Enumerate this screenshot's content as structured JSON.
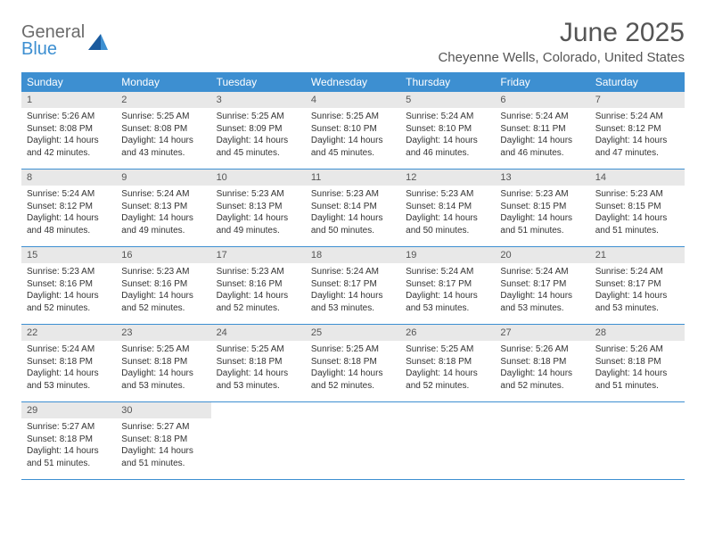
{
  "logo": {
    "general": "General",
    "blue": "Blue"
  },
  "title": "June 2025",
  "location": "Cheyenne Wells, Colorado, United States",
  "weekdays": [
    "Sunday",
    "Monday",
    "Tuesday",
    "Wednesday",
    "Thursday",
    "Friday",
    "Saturday"
  ],
  "colors": {
    "header_bar": "#3d8fd1",
    "daynum_bg": "#e8e8e8",
    "row_border": "#3d8fd1",
    "text": "#333333",
    "title_text": "#555555",
    "logo_gray": "#6b6b6b",
    "logo_blue": "#3d8fd1",
    "background": "#ffffff"
  },
  "typography": {
    "title_fontsize": 30,
    "location_fontsize": 15,
    "weekday_fontsize": 12,
    "daynum_fontsize": 11,
    "body_fontsize": 10
  },
  "grid": {
    "columns": 7,
    "rows": 5
  },
  "days": [
    {
      "n": "1",
      "sunrise": "5:26 AM",
      "sunset": "8:08 PM",
      "daylight": "14 hours and 42 minutes."
    },
    {
      "n": "2",
      "sunrise": "5:25 AM",
      "sunset": "8:08 PM",
      "daylight": "14 hours and 43 minutes."
    },
    {
      "n": "3",
      "sunrise": "5:25 AM",
      "sunset": "8:09 PM",
      "daylight": "14 hours and 45 minutes."
    },
    {
      "n": "4",
      "sunrise": "5:25 AM",
      "sunset": "8:10 PM",
      "daylight": "14 hours and 45 minutes."
    },
    {
      "n": "5",
      "sunrise": "5:24 AM",
      "sunset": "8:10 PM",
      "daylight": "14 hours and 46 minutes."
    },
    {
      "n": "6",
      "sunrise": "5:24 AM",
      "sunset": "8:11 PM",
      "daylight": "14 hours and 46 minutes."
    },
    {
      "n": "7",
      "sunrise": "5:24 AM",
      "sunset": "8:12 PM",
      "daylight": "14 hours and 47 minutes."
    },
    {
      "n": "8",
      "sunrise": "5:24 AM",
      "sunset": "8:12 PM",
      "daylight": "14 hours and 48 minutes."
    },
    {
      "n": "9",
      "sunrise": "5:24 AM",
      "sunset": "8:13 PM",
      "daylight": "14 hours and 49 minutes."
    },
    {
      "n": "10",
      "sunrise": "5:23 AM",
      "sunset": "8:13 PM",
      "daylight": "14 hours and 49 minutes."
    },
    {
      "n": "11",
      "sunrise": "5:23 AM",
      "sunset": "8:14 PM",
      "daylight": "14 hours and 50 minutes."
    },
    {
      "n": "12",
      "sunrise": "5:23 AM",
      "sunset": "8:14 PM",
      "daylight": "14 hours and 50 minutes."
    },
    {
      "n": "13",
      "sunrise": "5:23 AM",
      "sunset": "8:15 PM",
      "daylight": "14 hours and 51 minutes."
    },
    {
      "n": "14",
      "sunrise": "5:23 AM",
      "sunset": "8:15 PM",
      "daylight": "14 hours and 51 minutes."
    },
    {
      "n": "15",
      "sunrise": "5:23 AM",
      "sunset": "8:16 PM",
      "daylight": "14 hours and 52 minutes."
    },
    {
      "n": "16",
      "sunrise": "5:23 AM",
      "sunset": "8:16 PM",
      "daylight": "14 hours and 52 minutes."
    },
    {
      "n": "17",
      "sunrise": "5:23 AM",
      "sunset": "8:16 PM",
      "daylight": "14 hours and 52 minutes."
    },
    {
      "n": "18",
      "sunrise": "5:24 AM",
      "sunset": "8:17 PM",
      "daylight": "14 hours and 53 minutes."
    },
    {
      "n": "19",
      "sunrise": "5:24 AM",
      "sunset": "8:17 PM",
      "daylight": "14 hours and 53 minutes."
    },
    {
      "n": "20",
      "sunrise": "5:24 AM",
      "sunset": "8:17 PM",
      "daylight": "14 hours and 53 minutes."
    },
    {
      "n": "21",
      "sunrise": "5:24 AM",
      "sunset": "8:17 PM",
      "daylight": "14 hours and 53 minutes."
    },
    {
      "n": "22",
      "sunrise": "5:24 AM",
      "sunset": "8:18 PM",
      "daylight": "14 hours and 53 minutes."
    },
    {
      "n": "23",
      "sunrise": "5:25 AM",
      "sunset": "8:18 PM",
      "daylight": "14 hours and 53 minutes."
    },
    {
      "n": "24",
      "sunrise": "5:25 AM",
      "sunset": "8:18 PM",
      "daylight": "14 hours and 53 minutes."
    },
    {
      "n": "25",
      "sunrise": "5:25 AM",
      "sunset": "8:18 PM",
      "daylight": "14 hours and 52 minutes."
    },
    {
      "n": "26",
      "sunrise": "5:25 AM",
      "sunset": "8:18 PM",
      "daylight": "14 hours and 52 minutes."
    },
    {
      "n": "27",
      "sunrise": "5:26 AM",
      "sunset": "8:18 PM",
      "daylight": "14 hours and 52 minutes."
    },
    {
      "n": "28",
      "sunrise": "5:26 AM",
      "sunset": "8:18 PM",
      "daylight": "14 hours and 51 minutes."
    },
    {
      "n": "29",
      "sunrise": "5:27 AM",
      "sunset": "8:18 PM",
      "daylight": "14 hours and 51 minutes."
    },
    {
      "n": "30",
      "sunrise": "5:27 AM",
      "sunset": "8:18 PM",
      "daylight": "14 hours and 51 minutes."
    }
  ],
  "labels": {
    "sunrise": "Sunrise:",
    "sunset": "Sunset:",
    "daylight": "Daylight:"
  }
}
